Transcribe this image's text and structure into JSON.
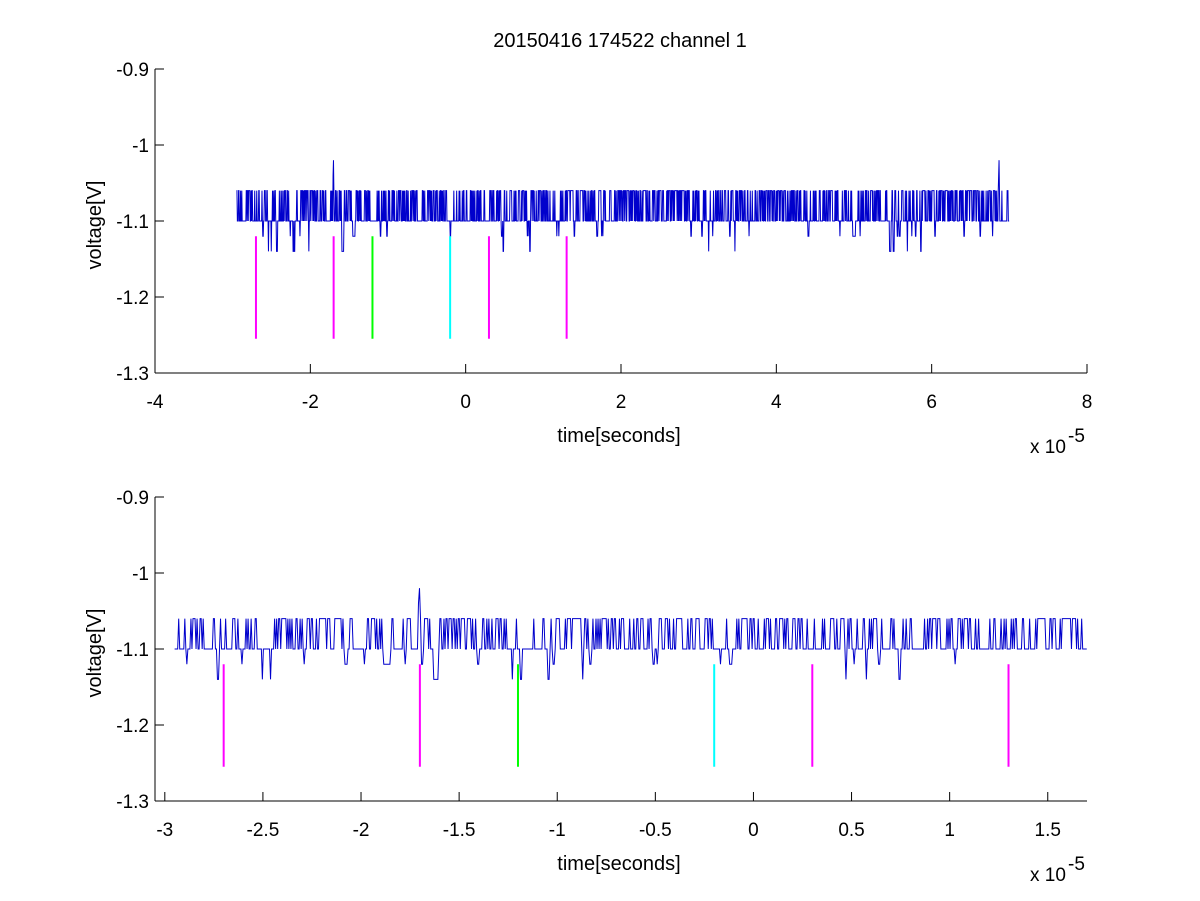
{
  "figure": {
    "title": "20150416 174522 channel 1"
  },
  "chart_data": [
    {
      "type": "line",
      "title": "20150416 174522 channel 1",
      "xlabel": "time[seconds]",
      "ylabel": "voltage[V]",
      "x_scale_note": "x 10",
      "x_scale_exponent": "-5",
      "xlim": [
        -4,
        8
      ],
      "ylim": [
        -1.3,
        -0.9
      ],
      "xticks": [
        -4,
        -2,
        0,
        2,
        4,
        6,
        8
      ],
      "xtick_labels": [
        "-4",
        "-2",
        "0",
        "2",
        "4",
        "6",
        "8"
      ],
      "yticks": [
        -1.3,
        -1.2,
        -1.1,
        -1.0,
        -0.9
      ],
      "ytick_labels": [
        "-1.3",
        "-1.2",
        "-1.1",
        "-1",
        "-0.9"
      ],
      "grid": false,
      "series": [
        {
          "color": "#0000cc",
          "x_range": [
            -2.95,
            7.0
          ],
          "baseline": -1.1,
          "levels": [
            -1.06,
            -1.1,
            -1.12,
            -1.14
          ],
          "peaks": [
            {
              "x": -1.7,
              "y": -1.02
            },
            {
              "x": 6.87,
              "y": -1.02
            }
          ]
        }
      ],
      "markers": [
        {
          "x": -2.7,
          "y_top": -1.12,
          "y_bottom": -1.255,
          "color": "#ff00ff"
        },
        {
          "x": -1.7,
          "y_top": -1.12,
          "y_bottom": -1.255,
          "color": "#ff00ff"
        },
        {
          "x": -1.2,
          "y_top": -1.12,
          "y_bottom": -1.255,
          "color": "#00ff00"
        },
        {
          "x": -0.2,
          "y_top": -1.12,
          "y_bottom": -1.255,
          "color": "#00ffff"
        },
        {
          "x": 0.3,
          "y_top": -1.12,
          "y_bottom": -1.255,
          "color": "#ff00ff"
        },
        {
          "x": 1.3,
          "y_top": -1.12,
          "y_bottom": -1.255,
          "color": "#ff00ff"
        }
      ]
    },
    {
      "type": "line",
      "xlabel": "time[seconds]",
      "ylabel": "voltage[V]",
      "x_scale_note": "x 10",
      "x_scale_exponent": "-5",
      "xlim": [
        -3.05,
        1.7
      ],
      "ylim": [
        -1.3,
        -0.9
      ],
      "xticks": [
        -3,
        -2.5,
        -2,
        -1.5,
        -1,
        -0.5,
        0,
        0.5,
        1,
        1.5
      ],
      "xtick_labels": [
        "-3",
        "-2.5",
        "-2",
        "-1.5",
        "-1",
        "-0.5",
        "0",
        "0.5",
        "1",
        "1.5"
      ],
      "yticks": [
        -1.3,
        -1.2,
        -1.1,
        -1.0,
        -0.9
      ],
      "ytick_labels": [
        "-1.3",
        "-1.2",
        "-1.1",
        "-1",
        "-0.9"
      ],
      "grid": false,
      "series": [
        {
          "color": "#0000cc",
          "x_range": [
            -2.95,
            1.7
          ],
          "baseline": -1.1,
          "levels": [
            -1.06,
            -1.1,
            -1.12,
            -1.14
          ],
          "peaks": [
            {
              "x": -1.7,
              "y": -1.02
            }
          ]
        }
      ],
      "markers": [
        {
          "x": -2.7,
          "y_top": -1.12,
          "y_bottom": -1.255,
          "color": "#ff00ff"
        },
        {
          "x": -1.7,
          "y_top": -1.12,
          "y_bottom": -1.255,
          "color": "#ff00ff"
        },
        {
          "x": -1.2,
          "y_top": -1.12,
          "y_bottom": -1.255,
          "color": "#00ff00"
        },
        {
          "x": -0.2,
          "y_top": -1.12,
          "y_bottom": -1.255,
          "color": "#00ffff"
        },
        {
          "x": 0.3,
          "y_top": -1.12,
          "y_bottom": -1.255,
          "color": "#ff00ff"
        },
        {
          "x": 1.3,
          "y_top": -1.12,
          "y_bottom": -1.255,
          "color": "#ff00ff"
        }
      ]
    }
  ]
}
